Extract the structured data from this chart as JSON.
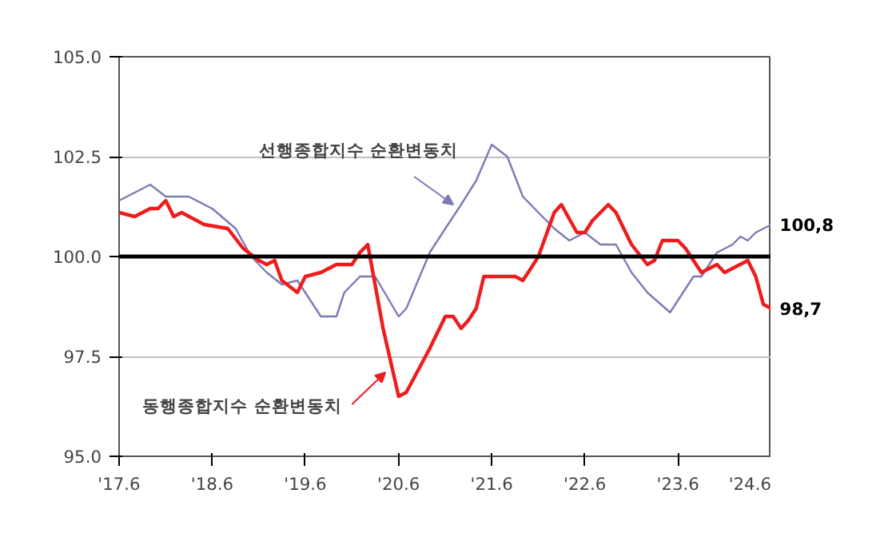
{
  "chart_data": {
    "type": "line",
    "xlim": [
      "2017-06",
      "2024-06"
    ],
    "xticks": [
      {
        "value": "2017-06",
        "label": "'17.6"
      },
      {
        "value": "2018-06",
        "label": "'18.6"
      },
      {
        "value": "2019-06",
        "label": "'19.6"
      },
      {
        "value": "2020-06",
        "label": "'20.6"
      },
      {
        "value": "2021-06",
        "label": "'21.6"
      },
      {
        "value": "2022-06",
        "label": "'22.6"
      },
      {
        "value": "2023-06",
        "label": "'23.6"
      },
      {
        "value": "2024-06",
        "label": "'24.6"
      }
    ],
    "ylim": [
      95,
      105
    ],
    "yticks": [
      {
        "value": 95,
        "label": "95.0"
      },
      {
        "value": 97.5,
        "label": "97.5"
      },
      {
        "value": 100,
        "label": "100.0"
      },
      {
        "value": 102.5,
        "label": "102.5"
      },
      {
        "value": 105,
        "label": "105.0"
      }
    ],
    "grid": "y",
    "marker": "none",
    "line_style": "solid",
    "ref_lines": [
      {
        "axis": "y",
        "value": 100,
        "label": null,
        "color": "#000000"
      }
    ],
    "series": [
      {
        "name": "선행종합지수 순환변동치",
        "color": "#7b7bb5",
        "x": [
          "2017-06",
          "2017-09",
          "2017-10",
          "2017-12",
          "2018-03",
          "2018-05",
          "2018-06",
          "2018-09",
          "2018-11",
          "2019-01",
          "2019-03",
          "2019-05",
          "2019-08",
          "2019-10",
          "2019-11",
          "2020-01",
          "2020-03",
          "2020-06",
          "2020-07",
          "2020-10",
          "2020-12",
          "2021-02",
          "2021-04",
          "2021-06",
          "2021-08",
          "2021-10",
          "2021-12",
          "2022-02",
          "2022-04",
          "2022-06",
          "2022-08",
          "2022-10",
          "2022-12",
          "2023-02",
          "2023-05",
          "2023-08",
          "2023-09",
          "2023-11",
          "2024-01",
          "2024-02",
          "2024-03",
          "2024-04",
          "2024-06"
        ],
        "values": [
          101.4,
          101.7,
          101.8,
          101.5,
          101.5,
          101.3,
          101.2,
          100.7,
          100.0,
          99.6,
          99.3,
          99.4,
          98.5,
          98.5,
          99.1,
          99.5,
          99.5,
          98.5,
          98.7,
          100.1,
          100.7,
          101.3,
          101.9,
          102.8,
          102.5,
          101.5,
          101.1,
          100.7,
          100.4,
          100.6,
          100.3,
          100.3,
          99.6,
          99.1,
          98.6,
          99.5,
          99.5,
          100.1,
          100.3,
          100.5,
          100.4,
          100.6,
          100.8
        ],
        "value_labels": [
          null,
          null,
          null,
          null,
          null,
          null,
          null,
          null,
          null,
          null,
          null,
          null,
          null,
          null,
          null,
          null,
          null,
          null,
          null,
          null,
          null,
          null,
          null,
          null,
          null,
          null,
          null,
          null,
          null,
          null,
          null,
          null,
          null,
          null,
          null,
          null,
          null,
          null,
          null,
          null,
          null,
          null,
          "100,8"
        ]
      },
      {
        "name": "동행종합지수 순환변동치",
        "color": "#ee1c1c",
        "x": [
          "2017-06",
          "2017-08",
          "2017-10",
          "2017-11",
          "2017-12",
          "2018-01",
          "2018-02",
          "2018-05",
          "2018-08",
          "2018-10",
          "2018-12",
          "2019-01",
          "2019-02",
          "2019-03",
          "2019-05",
          "2019-06",
          "2019-08",
          "2019-10",
          "2019-12",
          "2020-01",
          "2020-02",
          "2020-04",
          "2020-06",
          "2020-07",
          "2020-10",
          "2020-12",
          "2021-01",
          "2021-02",
          "2021-03",
          "2021-04",
          "2021-05",
          "2021-09",
          "2021-10",
          "2021-11",
          "2021-12",
          "2022-02",
          "2022-03",
          "2022-05",
          "2022-06",
          "2022-07",
          "2022-09",
          "2022-10",
          "2022-12",
          "2023-02",
          "2023-03",
          "2023-04",
          "2023-06",
          "2023-07",
          "2023-09",
          "2023-11",
          "2023-12",
          "2024-03",
          "2024-04",
          "2024-05",
          "2024-06"
        ],
        "values": [
          101.1,
          101.0,
          101.2,
          101.2,
          101.4,
          101.0,
          101.1,
          100.8,
          100.7,
          100.2,
          99.9,
          99.8,
          99.9,
          99.4,
          99.1,
          99.5,
          99.6,
          99.8,
          99.8,
          100.1,
          100.3,
          98.2,
          96.5,
          96.6,
          97.7,
          98.5,
          98.5,
          98.2,
          98.4,
          98.7,
          99.5,
          99.5,
          99.4,
          99.7,
          100.0,
          101.1,
          101.3,
          100.6,
          100.6,
          100.9,
          101.3,
          101.1,
          100.3,
          99.8,
          99.9,
          100.4,
          100.4,
          100.2,
          99.6,
          99.8,
          99.6,
          99.9,
          99.5,
          98.8,
          98.7
        ],
        "value_labels": [
          null,
          null,
          null,
          null,
          null,
          null,
          null,
          null,
          null,
          null,
          null,
          null,
          null,
          null,
          null,
          null,
          null,
          null,
          null,
          null,
          null,
          null,
          null,
          null,
          null,
          null,
          null,
          null,
          null,
          null,
          null,
          null,
          null,
          null,
          null,
          null,
          null,
          null,
          null,
          null,
          null,
          null,
          null,
          null,
          null,
          null,
          null,
          null,
          null,
          null,
          null,
          null,
          null,
          null,
          "98,7"
        ]
      }
    ]
  }
}
